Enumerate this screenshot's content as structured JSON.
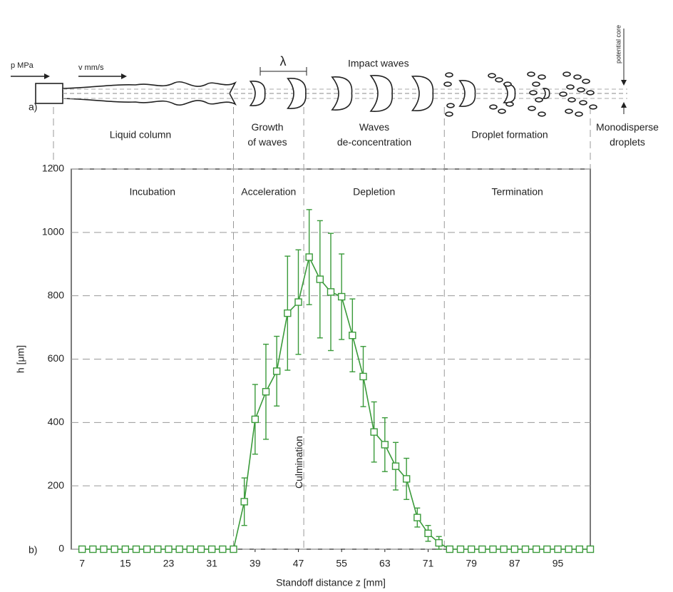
{
  "diagram": {
    "panel_label": "a)",
    "pressure": "p MPa",
    "velocity": "v mm/s",
    "wavelength": "λ",
    "impact": "Impact waves",
    "core": "potential core",
    "stages": [
      [
        "Liquid column"
      ],
      [
        "Growth",
        "of waves"
      ],
      [
        "Waves",
        "de-concentration"
      ],
      [
        "Droplet formation"
      ],
      [
        "Monodisperse",
        "droplets"
      ]
    ]
  },
  "chart_data": {
    "type": "line",
    "panel_label": "b)",
    "x_label": "Standoff distance z [mm]",
    "y_label": "h [μm]",
    "xlim": [
      5,
      101
    ],
    "ylim": [
      0,
      1200
    ],
    "xticks": [
      7,
      15,
      23,
      31,
      39,
      47,
      55,
      63,
      71,
      79,
      87,
      95
    ],
    "yticks": [
      0,
      200,
      400,
      600,
      800,
      1000,
      1200
    ],
    "grid": true,
    "phase_labels": [
      "Incubation",
      "Acceleration",
      "Depletion",
      "Termination"
    ],
    "phase_boundaries": [
      35,
      48,
      74
    ],
    "culmination": "Culmination",
    "x": [
      7,
      9,
      11,
      13,
      15,
      17,
      19,
      21,
      23,
      25,
      27,
      29,
      31,
      33,
      35,
      37,
      39,
      41,
      43,
      45,
      47,
      49,
      51,
      53,
      55,
      57,
      59,
      61,
      63,
      65,
      67,
      69,
      71,
      73,
      75,
      77,
      79,
      81,
      83,
      85,
      87,
      89,
      91,
      93,
      95,
      97,
      99,
      101
    ],
    "series": [
      {
        "color": "#3a9a3a",
        "values": [
          0,
          0,
          0,
          0,
          0,
          0,
          0,
          0,
          0,
          0,
          0,
          0,
          0,
          0,
          0,
          150,
          410,
          497,
          562,
          745,
          780,
          922,
          852,
          812,
          797,
          675,
          545,
          370,
          330,
          262,
          222,
          100,
          50,
          20,
          0,
          0,
          0,
          0,
          0,
          0,
          0,
          0,
          0,
          0,
          0,
          0,
          0,
          0
        ],
        "errors": [
          0,
          0,
          0,
          0,
          0,
          0,
          0,
          0,
          0,
          0,
          0,
          0,
          0,
          0,
          0,
          75,
          110,
          150,
          110,
          180,
          165,
          150,
          185,
          185,
          135,
          115,
          95,
          95,
          85,
          75,
          65,
          30,
          25,
          20,
          0,
          0,
          0,
          0,
          0,
          0,
          0,
          0,
          0,
          0,
          0,
          0,
          0,
          0
        ]
      }
    ]
  }
}
